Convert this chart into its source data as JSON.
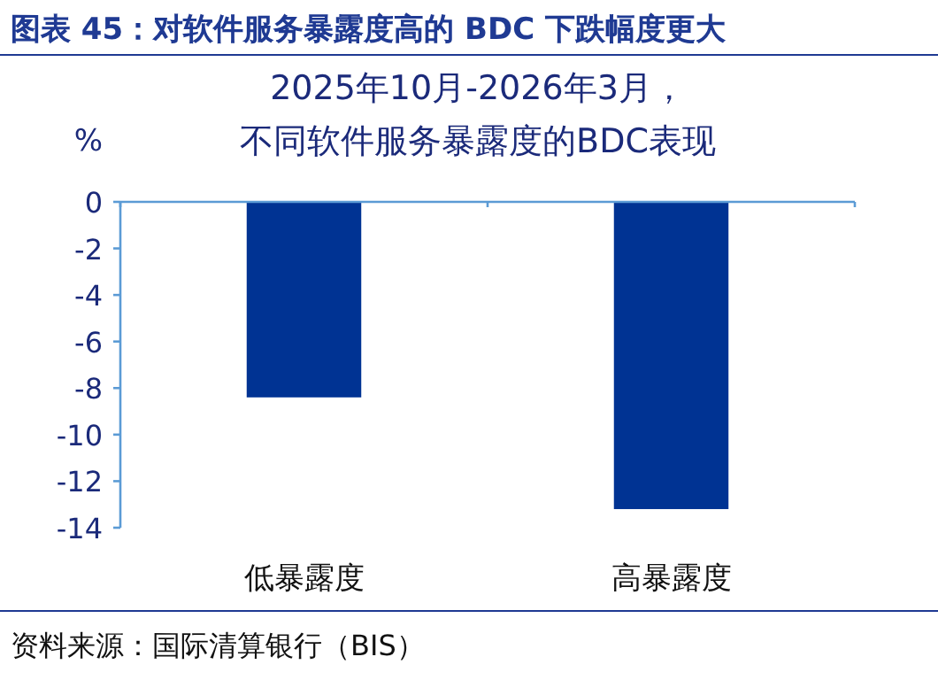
{
  "chart_data": {
    "type": "bar",
    "title": "图表 45：对软件服务暴露度高的 BDC 下跌幅度更大",
    "subtitle": "2025年10月-2026年3月，不同软件服务暴露度的BDC表现",
    "ylabel": "%",
    "categories": [
      "低暴露度",
      "高暴露度"
    ],
    "values": [
      -8.4,
      -13.2
    ],
    "color": "#003393",
    "ylim": [
      -14,
      0
    ],
    "yticks": [
      0,
      -2,
      -4,
      -6,
      -8,
      -10,
      -12,
      -14
    ],
    "annotations": [
      "资料来源：国际清算银行（BIS）"
    ]
  }
}
